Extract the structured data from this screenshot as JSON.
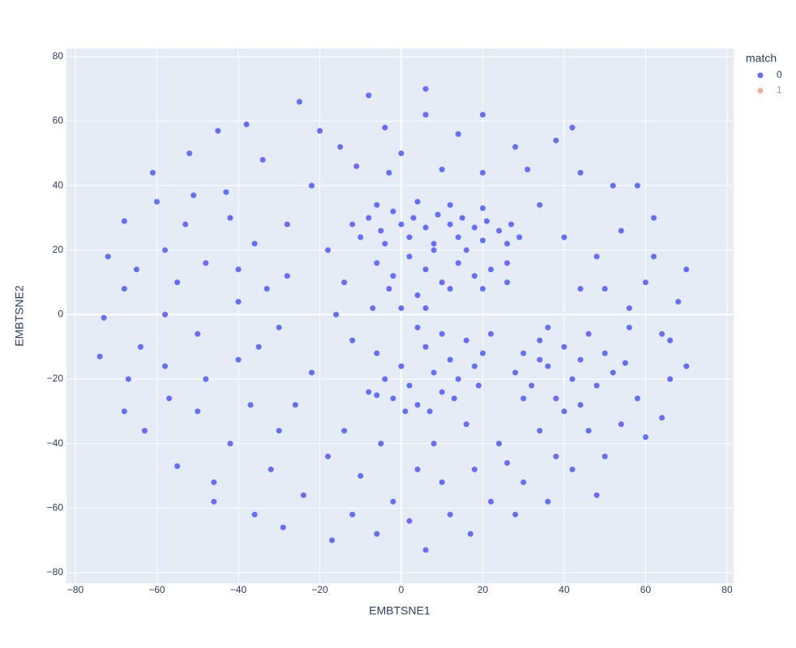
{
  "chart_data": {
    "type": "scatter",
    "x_label": "EMBTSNE1",
    "y_label": "EMBTSNE2",
    "legend_title": "match",
    "legend": "right",
    "grid": true,
    "xlim": [
      -82.2,
      81.6
    ],
    "ylim": [
      -83.3,
      82.5
    ],
    "xticks": [
      {
        "value": -80,
        "label": "−80"
      },
      {
        "value": -60,
        "label": "−60"
      },
      {
        "value": -40,
        "label": "−40"
      },
      {
        "value": -20,
        "label": "−20"
      },
      0,
      20,
      40,
      60,
      80
    ],
    "yticks": [
      {
        "value": -80,
        "label": "−80"
      },
      {
        "value": -60,
        "label": "−60"
      },
      {
        "value": -40,
        "label": "−40"
      },
      {
        "value": -20,
        "label": "−20"
      },
      0,
      20,
      40,
      60,
      80
    ],
    "series": [
      {
        "name": "0",
        "color": "#636efa",
        "visible": true,
        "x": [
          -12,
          -8,
          -5,
          -2,
          0,
          3,
          6,
          9,
          12,
          15,
          18,
          21,
          24,
          27,
          29,
          -10,
          -4,
          2,
          8,
          14,
          20,
          26,
          -6,
          4,
          12,
          20,
          -6,
          -2,
          2,
          6,
          10,
          14,
          18,
          22,
          26,
          -3,
          4,
          12,
          20,
          26,
          0,
          6,
          8,
          16,
          -6,
          -4,
          -2,
          0,
          2,
          4,
          6,
          8,
          10,
          12,
          14,
          16,
          18,
          20,
          22,
          -6,
          1,
          7,
          13,
          19,
          10,
          4,
          28,
          30,
          32,
          34,
          36,
          38,
          40,
          42,
          44,
          46,
          48,
          50,
          30,
          36,
          44,
          40,
          52,
          34,
          -73,
          -74,
          -72,
          -68,
          -68,
          -67,
          -68,
          -64,
          -63,
          -65,
          -60,
          -61,
          -58,
          -58,
          -58,
          -57,
          -55,
          -55,
          -53,
          -52,
          -51,
          -50,
          -50,
          -48,
          -48,
          -46,
          -46,
          -45,
          -43,
          -42,
          -42,
          -40,
          -40,
          -40,
          -38,
          -37,
          -36,
          -36,
          -35,
          -34,
          -33,
          -32,
          -30,
          -30,
          -29,
          -28,
          -28,
          -26,
          -25,
          -24,
          -22,
          -22,
          -20,
          -18,
          -18,
          -17,
          -16,
          -15,
          -14,
          -14,
          -12,
          -12,
          -11,
          -10,
          -8,
          -8,
          -7,
          -6,
          -5,
          -4,
          -3,
          -2,
          0,
          2,
          4,
          6,
          6,
          6,
          8,
          10,
          10,
          12,
          14,
          16,
          17,
          18,
          20,
          20,
          22,
          24,
          26,
          28,
          28,
          30,
          31,
          34,
          34,
          36,
          38,
          38,
          40,
          42,
          42,
          44,
          44,
          46,
          48,
          48,
          50,
          50,
          52,
          54,
          54,
          56,
          58,
          60,
          60,
          62,
          62,
          64,
          66,
          66,
          68,
          70,
          70,
          58,
          56,
          64,
          55
        ],
        "y": [
          28,
          30,
          26,
          32,
          28,
          30,
          27,
          31,
          28,
          30,
          27,
          29,
          26,
          28,
          24,
          24,
          22,
          24,
          22,
          24,
          23,
          22,
          34,
          35,
          34,
          33,
          16,
          12,
          18,
          14,
          10,
          16,
          12,
          14,
          16,
          8,
          6,
          8,
          8,
          10,
          2,
          2,
          20,
          20,
          -12,
          -20,
          -26,
          -16,
          -22,
          -28,
          -10,
          -18,
          -24,
          -14,
          -20,
          -8,
          -16,
          -12,
          -6,
          -25,
          -30,
          -30,
          -26,
          -22,
          -6,
          -4,
          -18,
          -12,
          -22,
          -8,
          -16,
          -26,
          -10,
          -20,
          -14,
          -6,
          -22,
          -12,
          -26,
          -4,
          -28,
          -30,
          -18,
          -14,
          -1,
          -13,
          18,
          29,
          8,
          -20,
          -30,
          -10,
          -36,
          14,
          35,
          44,
          20,
          0,
          -16,
          -26,
          10,
          -47,
          28,
          50,
          37,
          -6,
          -30,
          16,
          -20,
          -52,
          -58,
          57,
          38,
          30,
          -40,
          14,
          -14,
          4,
          59,
          -28,
          -62,
          22,
          -10,
          48,
          8,
          -48,
          -4,
          -36,
          -66,
          28,
          12,
          -28,
          66,
          -56,
          40,
          -18,
          57,
          20,
          -44,
          -70,
          0,
          52,
          -36,
          10,
          -8,
          -62,
          46,
          -50,
          -24,
          68,
          2,
          -68,
          -40,
          58,
          44,
          -58,
          50,
          -64,
          -48,
          70,
          62,
          -73,
          -40,
          -52,
          45,
          -62,
          56,
          -34,
          -68,
          -48,
          62,
          44,
          -58,
          -40,
          -46,
          -62,
          52,
          -52,
          45,
          34,
          -36,
          -58,
          54,
          -44,
          24,
          58,
          -48,
          44,
          8,
          -36,
          18,
          -56,
          8,
          -44,
          40,
          26,
          -34,
          -4,
          -26,
          -38,
          10,
          30,
          18,
          -32,
          -8,
          -20,
          4,
          14,
          -16,
          40,
          2,
          -6,
          -15
        ]
      },
      {
        "name": "1",
        "color": "#EF553B",
        "visible": false,
        "x": [],
        "y": []
      }
    ]
  }
}
